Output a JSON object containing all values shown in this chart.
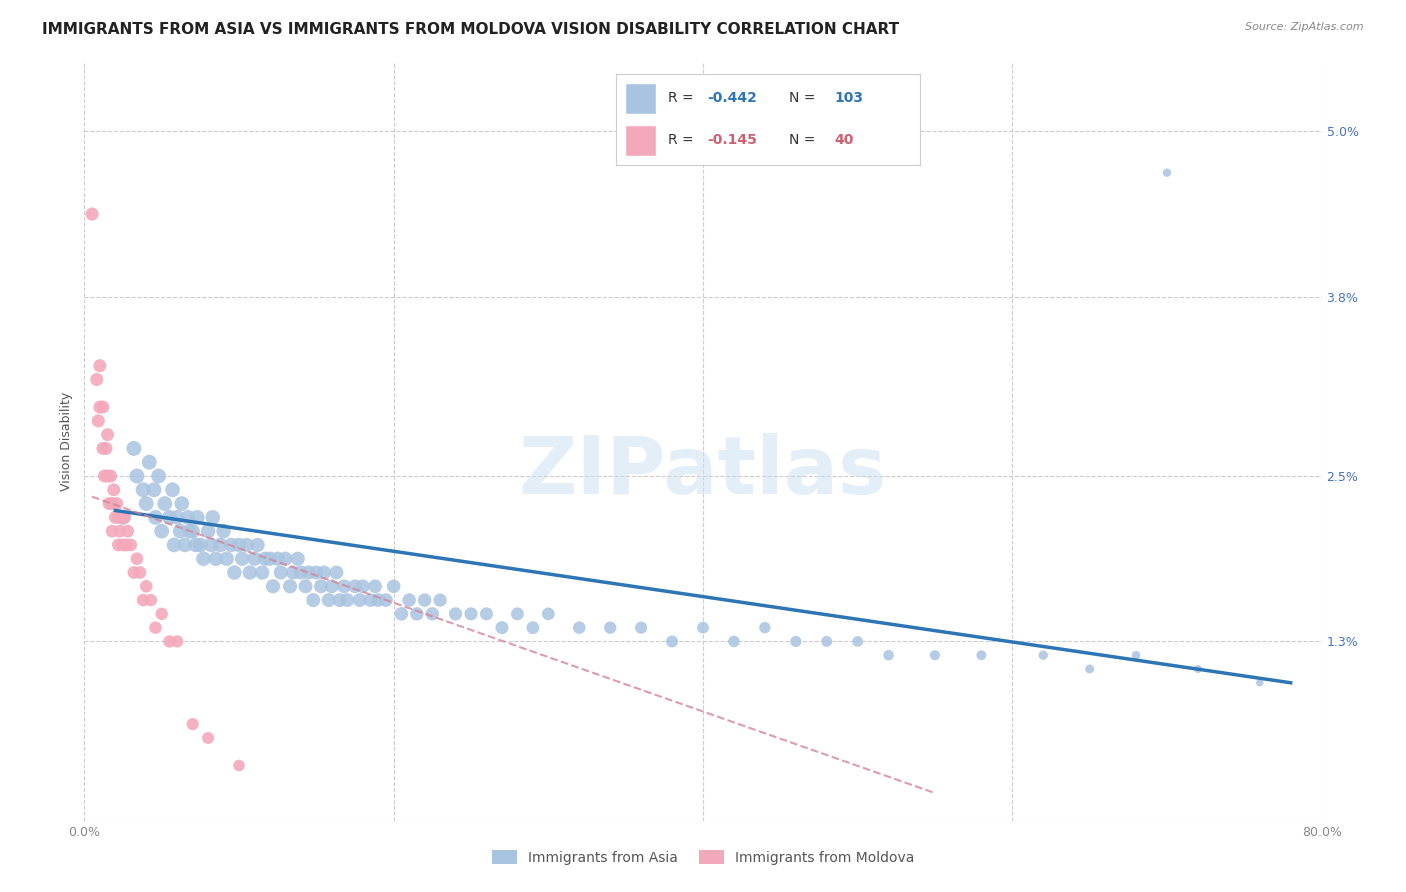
{
  "title": "IMMIGRANTS FROM ASIA VS IMMIGRANTS FROM MOLDOVA VISION DISABILITY CORRELATION CHART",
  "source": "Source: ZipAtlas.com",
  "ylabel": "Vision Disability",
  "xlim": [
    0.0,
    0.8
  ],
  "ylim": [
    0.0,
    0.055
  ],
  "xtick_positions": [
    0.0,
    0.2,
    0.4,
    0.6,
    0.8
  ],
  "xticklabels": [
    "0.0%",
    "",
    "",
    "",
    "80.0%"
  ],
  "ytick_positions": [
    0.0,
    0.013,
    0.025,
    0.038,
    0.05
  ],
  "yticklabels": [
    "",
    "1.3%",
    "2.5%",
    "3.8%",
    "5.0%"
  ],
  "asia_color": "#a8c4e0",
  "asia_line_color": "#2E75B6",
  "moldova_color": "#f4a8bc",
  "moldova_line_color": "#d4849a",
  "legend_asia_label": "Immigrants from Asia",
  "legend_moldova_label": "Immigrants from Moldova",
  "watermark": "ZIPatlas",
  "asia_R_text": "R = ",
  "asia_R_val": "-0.442",
  "asia_N_text": "N = ",
  "asia_N_val": "103",
  "moldova_R_text": "R = ",
  "moldova_R_val": "-0.145",
  "moldova_N_text": "N =  ",
  "moldova_N_val": "40",
  "asia_scatter_x": [
    0.025,
    0.032,
    0.034,
    0.038,
    0.04,
    0.042,
    0.045,
    0.046,
    0.048,
    0.05,
    0.052,
    0.055,
    0.057,
    0.058,
    0.06,
    0.062,
    0.063,
    0.065,
    0.067,
    0.068,
    0.07,
    0.072,
    0.073,
    0.075,
    0.077,
    0.08,
    0.082,
    0.083,
    0.085,
    0.088,
    0.09,
    0.092,
    0.095,
    0.097,
    0.1,
    0.102,
    0.105,
    0.107,
    0.11,
    0.112,
    0.115,
    0.117,
    0.12,
    0.122,
    0.125,
    0.127,
    0.13,
    0.133,
    0.135,
    0.138,
    0.14,
    0.143,
    0.145,
    0.148,
    0.15,
    0.153,
    0.155,
    0.158,
    0.16,
    0.163,
    0.165,
    0.168,
    0.17,
    0.175,
    0.178,
    0.18,
    0.185,
    0.188,
    0.19,
    0.195,
    0.2,
    0.205,
    0.21,
    0.215,
    0.22,
    0.225,
    0.23,
    0.24,
    0.25,
    0.26,
    0.27,
    0.28,
    0.29,
    0.3,
    0.32,
    0.34,
    0.36,
    0.38,
    0.4,
    0.42,
    0.44,
    0.46,
    0.48,
    0.5,
    0.52,
    0.55,
    0.58,
    0.62,
    0.65,
    0.68,
    0.7,
    0.72,
    0.76
  ],
  "asia_scatter_y": [
    0.022,
    0.027,
    0.025,
    0.024,
    0.023,
    0.026,
    0.024,
    0.022,
    0.025,
    0.021,
    0.023,
    0.022,
    0.024,
    0.02,
    0.022,
    0.021,
    0.023,
    0.02,
    0.022,
    0.021,
    0.021,
    0.02,
    0.022,
    0.02,
    0.019,
    0.021,
    0.02,
    0.022,
    0.019,
    0.02,
    0.021,
    0.019,
    0.02,
    0.018,
    0.02,
    0.019,
    0.02,
    0.018,
    0.019,
    0.02,
    0.018,
    0.019,
    0.019,
    0.017,
    0.019,
    0.018,
    0.019,
    0.017,
    0.018,
    0.019,
    0.018,
    0.017,
    0.018,
    0.016,
    0.018,
    0.017,
    0.018,
    0.016,
    0.017,
    0.018,
    0.016,
    0.017,
    0.016,
    0.017,
    0.016,
    0.017,
    0.016,
    0.017,
    0.016,
    0.016,
    0.017,
    0.015,
    0.016,
    0.015,
    0.016,
    0.015,
    0.016,
    0.015,
    0.015,
    0.015,
    0.014,
    0.015,
    0.014,
    0.015,
    0.014,
    0.014,
    0.014,
    0.013,
    0.014,
    0.013,
    0.014,
    0.013,
    0.013,
    0.013,
    0.012,
    0.012,
    0.012,
    0.012,
    0.011,
    0.012,
    0.047,
    0.011,
    0.01
  ],
  "moldova_scatter_x": [
    0.005,
    0.008,
    0.009,
    0.01,
    0.01,
    0.012,
    0.012,
    0.013,
    0.014,
    0.015,
    0.015,
    0.016,
    0.017,
    0.018,
    0.018,
    0.019,
    0.02,
    0.021,
    0.022,
    0.022,
    0.023,
    0.024,
    0.025,
    0.026,
    0.027,
    0.028,
    0.03,
    0.032,
    0.034,
    0.036,
    0.038,
    0.04,
    0.043,
    0.046,
    0.05,
    0.055,
    0.06,
    0.07,
    0.08,
    0.1
  ],
  "moldova_scatter_y": [
    0.044,
    0.032,
    0.029,
    0.03,
    0.033,
    0.03,
    0.027,
    0.025,
    0.027,
    0.028,
    0.025,
    0.023,
    0.025,
    0.023,
    0.021,
    0.024,
    0.022,
    0.023,
    0.022,
    0.02,
    0.021,
    0.022,
    0.02,
    0.022,
    0.02,
    0.021,
    0.02,
    0.018,
    0.019,
    0.018,
    0.016,
    0.017,
    0.016,
    0.014,
    0.015,
    0.013,
    0.013,
    0.007,
    0.006,
    0.004
  ],
  "asia_line_x": [
    0.02,
    0.78
  ],
  "asia_line_y": [
    0.0225,
    0.01
  ],
  "moldova_line_x": [
    0.005,
    0.55
  ],
  "moldova_line_y": [
    0.0235,
    0.002
  ],
  "title_fontsize": 11,
  "tick_fontsize": 9,
  "source_fontsize": 8
}
